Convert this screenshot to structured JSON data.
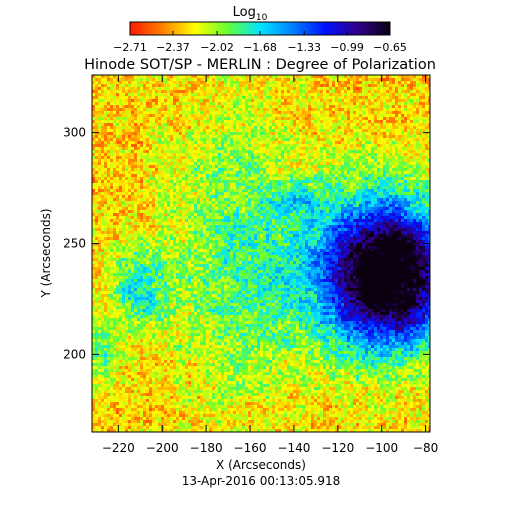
{
  "chart_data": {
    "type": "heatmap",
    "title": "Hinode SOT/SP - MERLIN : Degree of Polarization",
    "colorbar": {
      "label_main": "Log",
      "label_sub": "10",
      "ticks": [
        "-2.71",
        "-2.37",
        "-2.02",
        "-1.68",
        "-1.33",
        "-0.99",
        "-0.65"
      ],
      "range": [
        -2.71,
        -0.65
      ],
      "colormap": [
        "#ff1a00",
        "#ff8000",
        "#ffff00",
        "#66ff33",
        "#00e5ff",
        "#0080ff",
        "#0010ff",
        "#30008a",
        "#0a0010"
      ]
    },
    "xlabel": "X (Arcseconds)",
    "ylabel": "Y (Arcseconds)",
    "xlim": [
      -232,
      -78
    ],
    "ylim": [
      165,
      326
    ],
    "xticks": [
      {
        "value": -220,
        "label": "−220"
      },
      {
        "value": -200,
        "label": "−200"
      },
      {
        "value": -180,
        "label": "−180"
      },
      {
        "value": -160,
        "label": "−160"
      },
      {
        "value": -140,
        "label": "−140"
      },
      {
        "value": -120,
        "label": "−120"
      },
      {
        "value": -100,
        "label": "−100"
      },
      {
        "value": -80,
        "label": "−80"
      }
    ],
    "yticks": [
      {
        "value": 200,
        "label": "200"
      },
      {
        "value": 250,
        "label": "250"
      },
      {
        "value": 300,
        "label": "300"
      }
    ],
    "timestamp": "13-Apr-2016 00:13:05.918"
  }
}
